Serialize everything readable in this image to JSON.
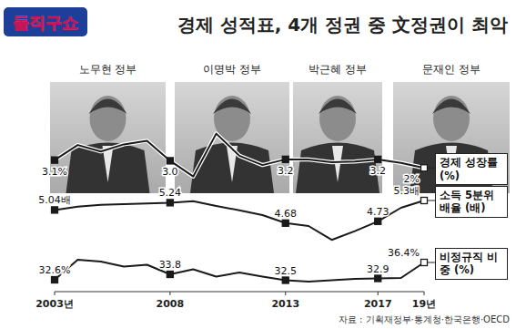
{
  "header": {
    "logo": "돌직구쇼",
    "title": "경제 성적표, 4개 정권 중 文정권이 최악"
  },
  "administrations": [
    "노무현 정부",
    "이명박 정부",
    "박근혜 정부",
    "문재인 정부"
  ],
  "chart_data": [
    {
      "type": "line",
      "x": [
        2003,
        2004,
        2005,
        2006,
        2007,
        2008,
        2009,
        2010,
        2011,
        2012,
        2013,
        2014,
        2015,
        2016,
        2017,
        2018,
        2019
      ],
      "xlim": [
        2003,
        2019
      ],
      "ylim": [
        0,
        7
      ],
      "tick_labels": false,
      "data_labels": true,
      "series": [
        {
          "name": "경제 성장률 (%)",
          "color": "#1a1a1a",
          "marker": "square",
          "values": [
            3.1,
            5.2,
            4.3,
            5.3,
            5.8,
            3.0,
            0.8,
            6.8,
            3.7,
            2.4,
            3.2,
            3.2,
            2.8,
            2.9,
            3.2,
            2.7,
            2.0
          ],
          "value_labels": [
            "3.1%",
            null,
            null,
            null,
            null,
            "3.0",
            null,
            null,
            null,
            null,
            "3.2",
            null,
            null,
            null,
            "3.2",
            null,
            "2%"
          ]
        }
      ]
    },
    {
      "type": "line",
      "x": [
        2003,
        2004,
        2005,
        2006,
        2007,
        2008,
        2009,
        2010,
        2011,
        2012,
        2013,
        2014,
        2015,
        2016,
        2017,
        2018,
        2019
      ],
      "xlim": [
        2003,
        2019
      ],
      "ylim": [
        4,
        5.5
      ],
      "tick_labels": false,
      "data_labels": true,
      "series": [
        {
          "name": "소득 5분위 배율 (배)",
          "color": "#1a1a1a",
          "marker": "square",
          "values": [
            5.04,
            5.13,
            5.18,
            5.2,
            5.22,
            5.24,
            5.28,
            5.15,
            5.03,
            4.9,
            4.68,
            4.6,
            4.22,
            4.46,
            4.73,
            5.1,
            5.3
          ],
          "value_labels": [
            "5.04배",
            null,
            null,
            null,
            null,
            "5.24",
            null,
            null,
            null,
            null,
            "4.68",
            null,
            null,
            null,
            "4.73",
            null,
            "5.3배"
          ]
        }
      ]
    },
    {
      "type": "line",
      "x": [
        2003,
        2004,
        2005,
        2006,
        2007,
        2008,
        2009,
        2010,
        2011,
        2012,
        2013,
        2014,
        2015,
        2016,
        2017,
        2018,
        2019
      ],
      "xlim": [
        2003,
        2019
      ],
      "ylim": [
        31,
        38
      ],
      "tick_labels": "x",
      "data_labels": true,
      "xticks": [
        {
          "value": 2003,
          "label": "2003년"
        },
        2008,
        2013,
        2017,
        {
          "value": 2019,
          "label": "19년"
        }
      ],
      "series": [
        {
          "name": "비정규직 비중 (%)",
          "color": "#1a1a1a",
          "marker": "square",
          "values": [
            32.6,
            37.0,
            36.6,
            35.5,
            35.9,
            33.8,
            34.9,
            33.3,
            34.2,
            33.3,
            32.5,
            32.2,
            32.5,
            32.8,
            32.9,
            33.0,
            36.4
          ],
          "value_labels": [
            "32.6%",
            null,
            null,
            null,
            null,
            "33.8",
            null,
            null,
            null,
            null,
            "32.5",
            null,
            null,
            null,
            "32.9",
            null,
            "36.4%"
          ]
        }
      ]
    }
  ],
  "source": "자료 : 기획재정부·통계청·한국은행·OECD"
}
